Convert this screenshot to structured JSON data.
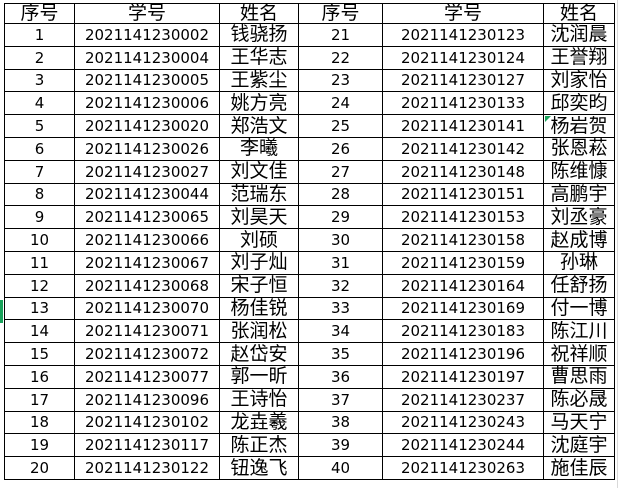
{
  "colors": {
    "text": "#000000",
    "border": "#000000",
    "background": "#ffffff",
    "accent_green": "#19A35B",
    "gridline_gray": "#d9d9d9"
  },
  "table": {
    "headers": [
      "序号",
      "学号",
      "姓名",
      "序号",
      "学号",
      "姓名"
    ],
    "rows": [
      [
        "1",
        "2021141230002",
        "钱骁扬",
        "21",
        "2021141230123",
        "沈润晨"
      ],
      [
        "2",
        "2021141230004",
        "王华志",
        "22",
        "2021141230124",
        "王誉翔"
      ],
      [
        "3",
        "2021141230005",
        "王紫尘",
        "23",
        "2021141230127",
        "刘家怡"
      ],
      [
        "4",
        "2021141230006",
        "姚方亮",
        "24",
        "2021141230133",
        "邱奕昀"
      ],
      [
        "5",
        "2021141230020",
        "郑浩文",
        "25",
        "2021141230141",
        "杨岩贺"
      ],
      [
        "6",
        "2021141230026",
        "李曦",
        "26",
        "2021141230142",
        "张恩菘"
      ],
      [
        "7",
        "2021141230027",
        "刘文佳",
        "27",
        "2021141230148",
        "陈维慷"
      ],
      [
        "8",
        "2021141230044",
        "范瑞东",
        "28",
        "2021141230151",
        "高鹏宇"
      ],
      [
        "9",
        "2021141230065",
        "刘昊天",
        "29",
        "2021141230153",
        "刘丞豪"
      ],
      [
        "10",
        "2021141230066",
        "刘硕",
        "30",
        "2021141230158",
        "赵成博"
      ],
      [
        "11",
        "2021141230067",
        "刘子灿",
        "31",
        "2021141230159",
        "孙琳"
      ],
      [
        "12",
        "2021141230068",
        "宋子恒",
        "32",
        "2021141230164",
        "任舒扬"
      ],
      [
        "13",
        "2021141230070",
        "杨佳锐",
        "33",
        "2021141230169",
        "付一博"
      ],
      [
        "14",
        "2021141230071",
        "张润松",
        "34",
        "2021141230183",
        "陈江川"
      ],
      [
        "15",
        "2021141230072",
        "赵岱安",
        "35",
        "2021141230196",
        "祝祥顺"
      ],
      [
        "16",
        "2021141230077",
        "郭一昕",
        "36",
        "2021141230197",
        "曹思雨"
      ],
      [
        "17",
        "2021141230096",
        "王诗怡",
        "37",
        "2021141230237",
        "陈必晟"
      ],
      [
        "18",
        "2021141230102",
        "龙垚羲",
        "38",
        "2021141230243",
        "马天宁"
      ],
      [
        "19",
        "2021141230117",
        "陈正杰",
        "39",
        "2021141230244",
        "沈庭宇"
      ],
      [
        "20",
        "2021141230122",
        "钮逸飞",
        "40",
        "2021141230263",
        "施佳辰"
      ]
    ]
  },
  "marks": {
    "error_triangle": {
      "row": 4,
      "col": 5
    },
    "selected_row_indicator": {
      "row": 12
    }
  }
}
